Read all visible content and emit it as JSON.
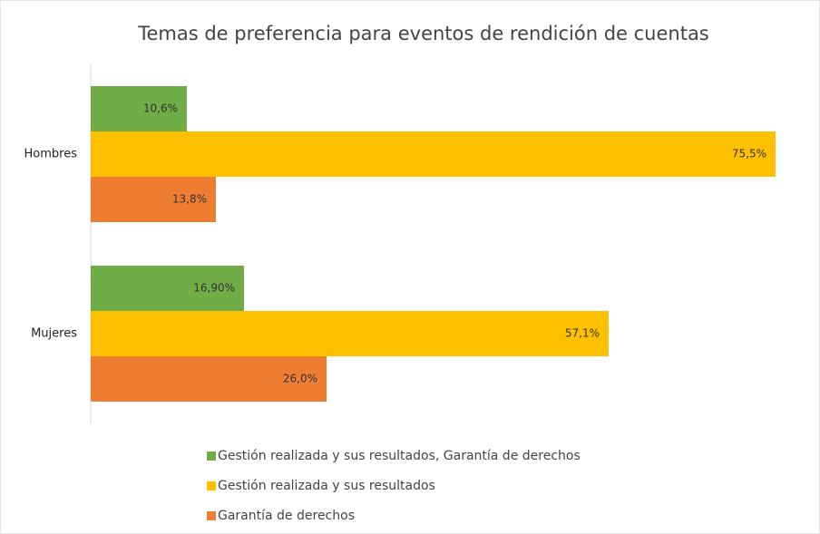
{
  "chart_data": {
    "type": "bar",
    "orientation": "horizontal",
    "title": "Temas de preferencia para eventos de rendición de cuentas",
    "categories": [
      "Hombres",
      "Mujeres"
    ],
    "series": [
      {
        "name": "Gestión realizada y sus resultados, Garantía de derechos",
        "color": "#70ad47",
        "values": [
          10.6,
          16.9
        ],
        "value_labels": [
          "10,6%",
          "16,90%"
        ]
      },
      {
        "name": "Gestión realizada y sus resultados",
        "color": "#ffc000",
        "values": [
          75.5,
          57.1
        ],
        "value_labels": [
          "75,5%",
          "57,1%"
        ]
      },
      {
        "name": "Garantía de derechos",
        "color": "#ed7d31",
        "values": [
          13.8,
          26.0
        ],
        "value_labels": [
          "13,8%",
          "26,0%"
        ]
      }
    ],
    "xlim": [
      0,
      80
    ],
    "legend": "bottom"
  }
}
